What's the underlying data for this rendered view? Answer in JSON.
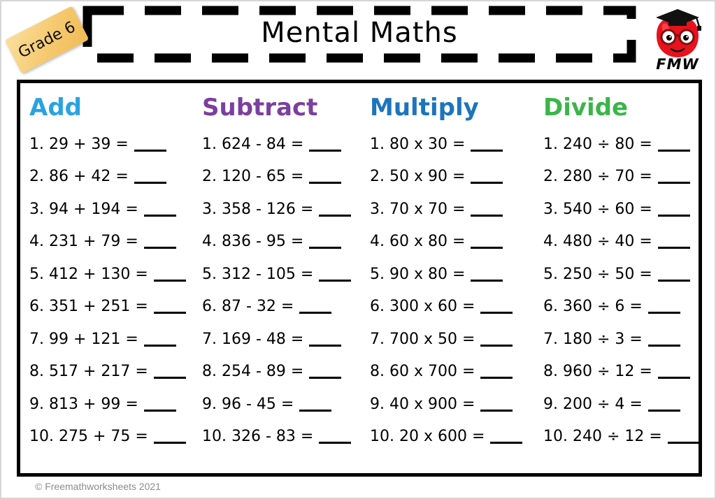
{
  "badge": {
    "label": "Grade 6"
  },
  "header": {
    "title": "Mental Maths",
    "logo_text": "FMW"
  },
  "footer": {
    "copyright": "© Freemathworksheets 2021"
  },
  "colors": {
    "add": "#29A3E0",
    "subtract": "#7B3FA0",
    "multiply": "#1C75BC",
    "divide": "#3BB54A",
    "badge_bg": "#F6C96F",
    "apple_red": "#E8121C",
    "cap_black": "#111111"
  },
  "worksheet": {
    "columns": [
      {
        "id": "add",
        "header": "Add",
        "color": "#29A3E0",
        "problems": [
          "1. 29 + 39 =",
          "2. 86 + 42 =",
          "3. 94 + 194 =",
          "4. 231 + 79 =",
          "5. 412 + 130 =",
          "6. 351 + 251 =",
          "7. 99 + 121 =",
          "8. 517 + 217 =",
          "9. 813 + 99 =",
          "10. 275 + 75 ="
        ]
      },
      {
        "id": "subtract",
        "header": "Subtract",
        "color": "#7B3FA0",
        "problems": [
          "1. 624 - 84 =",
          "2. 120 - 65 =",
          "3. 358 - 126 =",
          "4. 836 - 95 =",
          "5. 312 - 105 =",
          "6. 87 - 32 =",
          "7. 169 - 48 =",
          "8. 254 - 89 =",
          "9. 96 - 45 =",
          "10. 326 - 83 ="
        ]
      },
      {
        "id": "multiply",
        "header": "Multiply",
        "color": "#1C75BC",
        "problems": [
          "1. 80 x 30 =",
          "2. 50 x 90 =",
          "3. 70 x 70 =",
          "4. 60 x 80 =",
          "5. 90 x 80 =",
          "6. 300 x 60 =",
          "7. 700 x 50 =",
          "8. 60 x 700 =",
          "9. 40 x 900 =",
          "10. 20 x 600 ="
        ]
      },
      {
        "id": "divide",
        "header": "Divide",
        "color": "#3BB54A",
        "problems": [
          "1. 240 ÷ 80 =",
          "2. 280 ÷ 70 =",
          "3. 540 ÷ 60 =",
          "4. 480 ÷ 40 =",
          "5. 250 ÷ 50 =",
          "6. 360 ÷ 6 =",
          "7. 180 ÷ 3 =",
          "8. 960 ÷ 12 =",
          "9. 200 ÷ 4 =",
          "10. 240 ÷ 12 ="
        ]
      }
    ]
  }
}
